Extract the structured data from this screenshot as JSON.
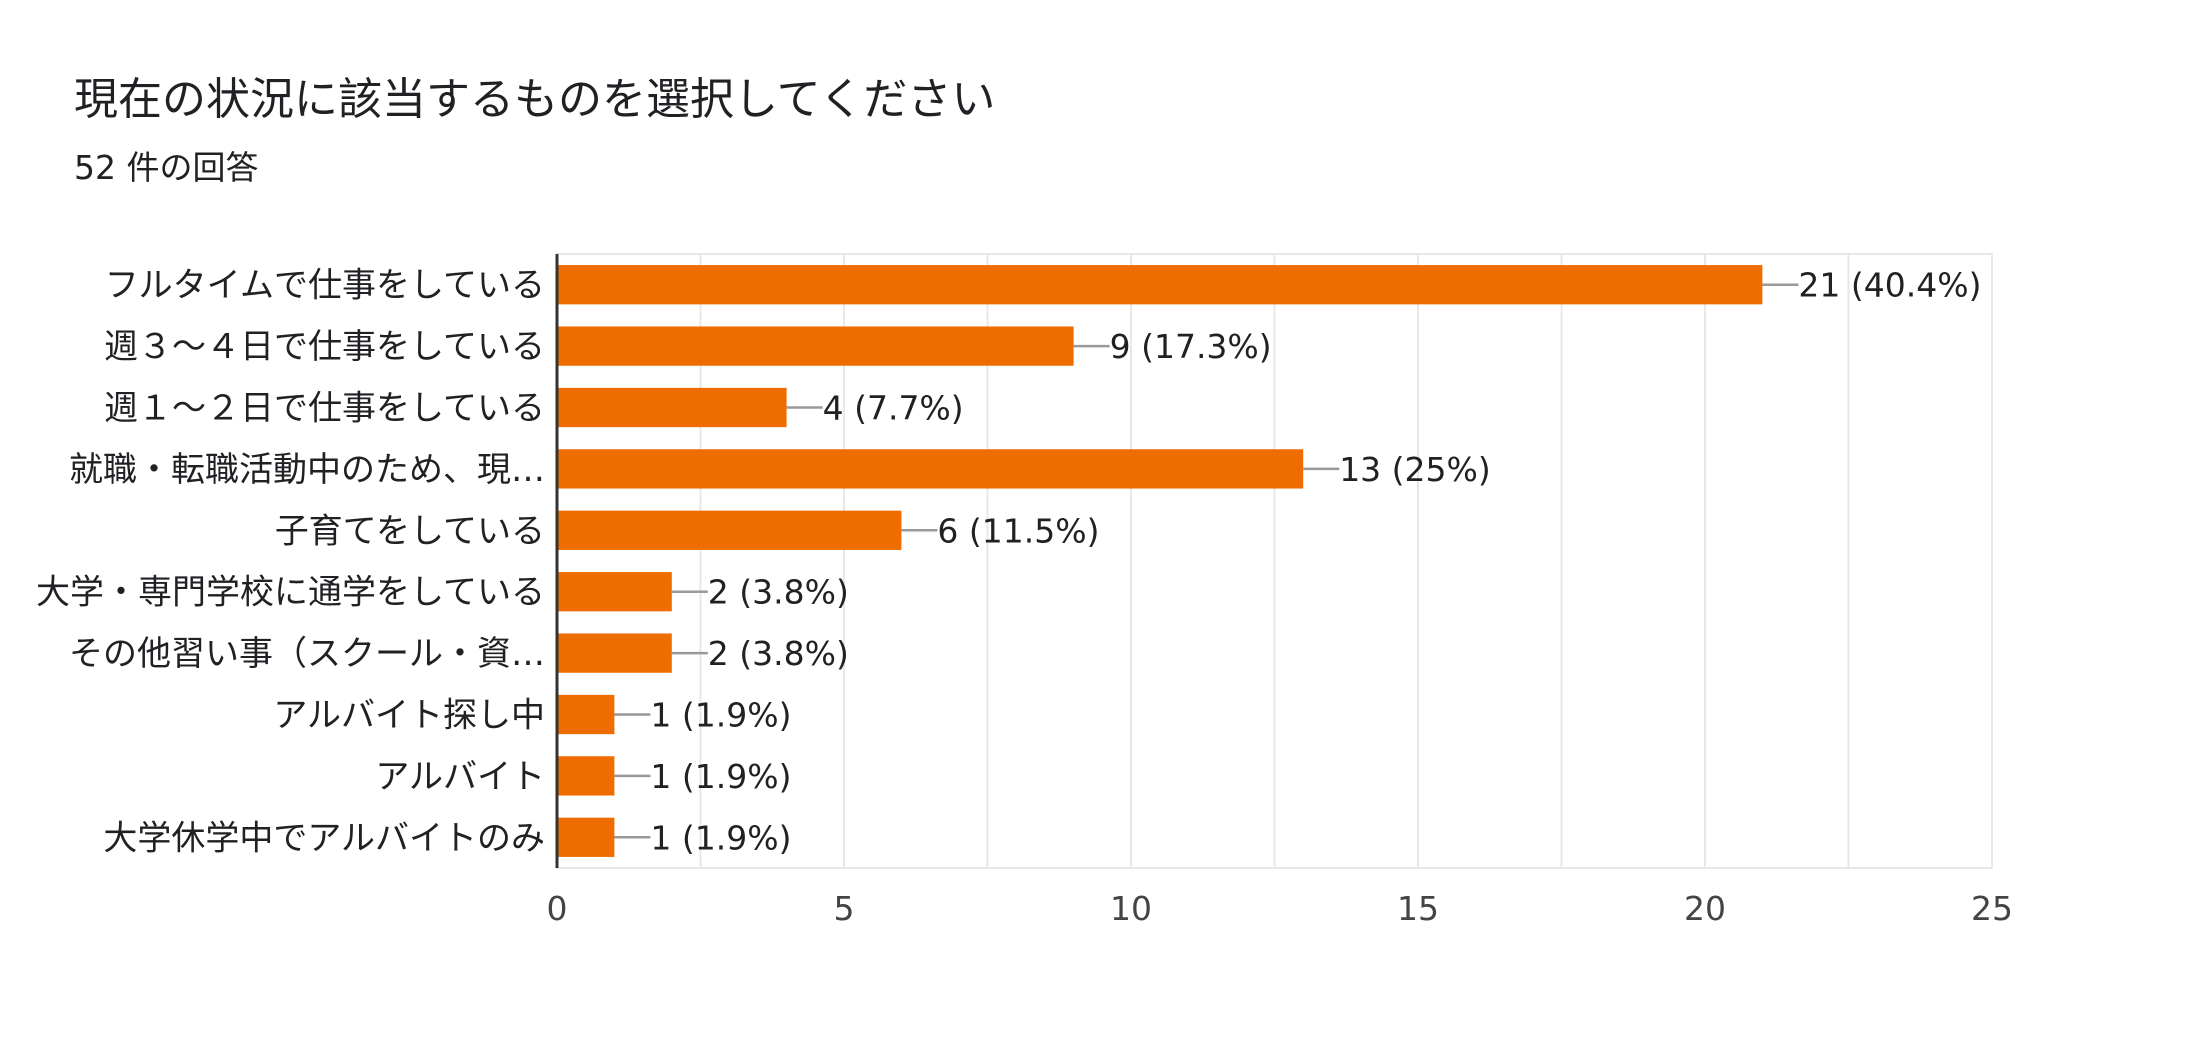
{
  "header": {
    "title": "現在の状況に該当するものを選択してください",
    "response_count": "52 件の回答"
  },
  "colors": {
    "bar": "#ef6c00",
    "axis": "#333333",
    "grid": "#e8e8e8",
    "leader": "#999999"
  },
  "chart_data": {
    "type": "bar",
    "orientation": "horizontal",
    "title": "現在の状況に該当するものを選択してください",
    "xlabel": "",
    "ylabel": "",
    "xlim": [
      0,
      25
    ],
    "x_ticks": [
      "0",
      "5",
      "10",
      "15",
      "20",
      "25"
    ],
    "grid": true,
    "categories": [
      "フルタイムで仕事をしている",
      "週３〜４日で仕事をしている",
      "週１〜２日で仕事をしている",
      "就職・転職活動中のため、現…",
      "子育てをしている",
      "大学・専門学校に通学をしている",
      "その他習い事（スクール・資…",
      "アルバイト探し中",
      "アルバイト",
      "大学休学中でアルバイトのみ"
    ],
    "values": [
      21,
      9,
      4,
      13,
      6,
      2,
      2,
      1,
      1,
      1
    ],
    "data_labels": [
      "21 (40.4%)",
      "9 (17.3%)",
      "4 (7.7%)",
      "13 (25%)",
      "6 (11.5%)",
      "2 (3.8%)",
      "2 (3.8%)",
      "1 (1.9%)",
      "1 (1.9%)",
      "1 (1.9%)"
    ]
  }
}
